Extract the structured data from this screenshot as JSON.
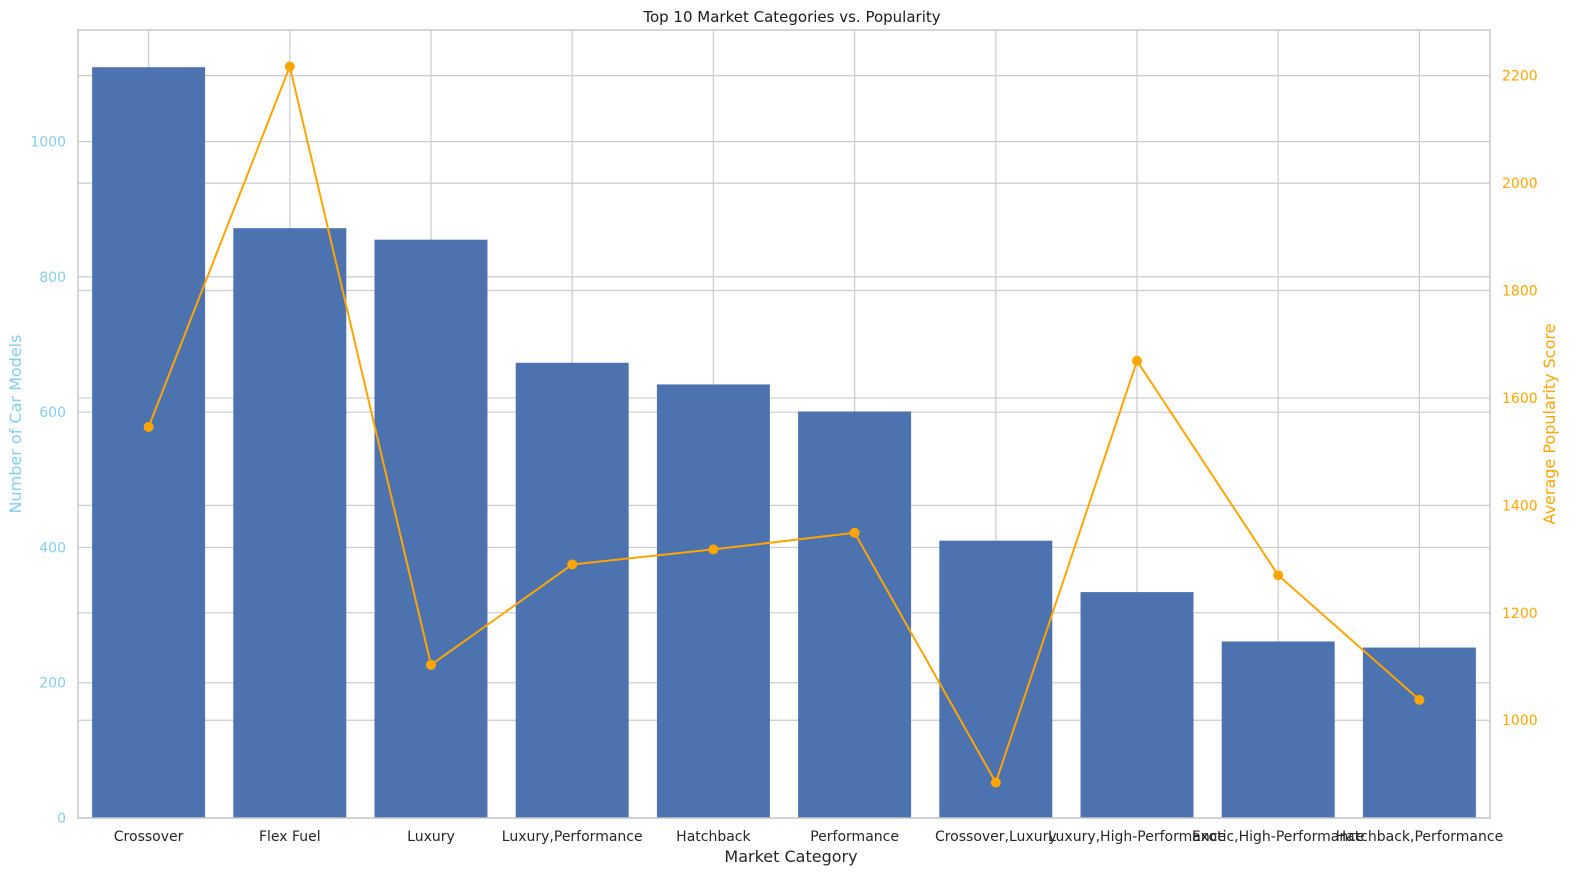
{
  "chart_data": {
    "type": "bar",
    "title": "Top 10 Market Categories vs. Popularity",
    "xlabel": "Market Category",
    "ylabel": "Number of Car Models",
    "y2label": "Average Popularity Score",
    "categories": [
      "Crossover",
      "Flex Fuel",
      "Luxury",
      "Luxury,Performance",
      "Hatchback",
      "Performance",
      "Crossover,Luxury",
      "Luxury,High-Performance",
      "Exotic,High-Performance",
      "Hatchback,Performance"
    ],
    "series": [
      {
        "type": "bar",
        "axis": "left",
        "values": [
          1110,
          872,
          855,
          673,
          641,
          601,
          410,
          334,
          261,
          252
        ]
      },
      {
        "type": "line",
        "axis": "right",
        "values": [
          1546,
          2217,
          1103,
          1290,
          1318,
          1349,
          884,
          1669,
          1270,
          1038
        ]
      }
    ],
    "ylim": [
      0,
      1165
    ],
    "y2lim": [
      818,
      2285
    ],
    "y_ticks": [
      0,
      200,
      400,
      600,
      800,
      1000
    ],
    "y2_ticks": [
      1000,
      1200,
      1400,
      1600,
      1800,
      2000,
      2200
    ],
    "grid": true,
    "colors": {
      "bar": "#4c72b0",
      "line": "#ffa500",
      "left_axis": "#87ceeb",
      "right_axis": "#ffa500",
      "grid": "#cccccc",
      "frame": "#c8c8c8",
      "text": "#262626"
    }
  }
}
